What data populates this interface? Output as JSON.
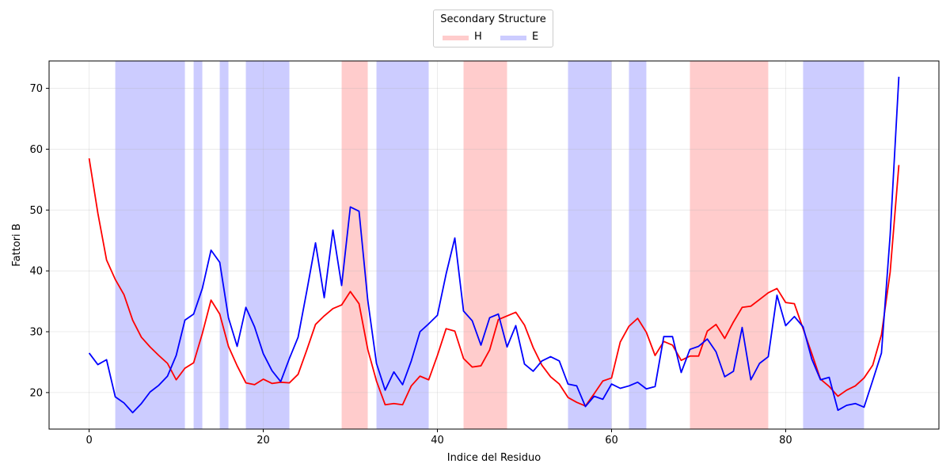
{
  "chart_data": {
    "type": "line",
    "xlabel": "Indice del Residuo",
    "ylabel": "Fattori B",
    "xlim": [
      -4.6,
      97.6
    ],
    "ylim": [
      14,
      74.5
    ],
    "xticks": [
      0,
      20,
      40,
      60,
      80
    ],
    "yticks": [
      20,
      30,
      40,
      50,
      60,
      70
    ],
    "grid": true,
    "legend": {
      "title": "Secondary Structure",
      "placement": "top-center outside",
      "entries": [
        {
          "label": "H",
          "color": "#ff0000"
        },
        {
          "label": "E",
          "color": "#0000ff"
        }
      ]
    },
    "shaded_regions": [
      {
        "type": "E",
        "start": 3,
        "end": 11
      },
      {
        "type": "E",
        "start": 12,
        "end": 13
      },
      {
        "type": "E",
        "start": 15,
        "end": 16
      },
      {
        "type": "E",
        "start": 18,
        "end": 23
      },
      {
        "type": "H",
        "start": 29,
        "end": 32
      },
      {
        "type": "E",
        "start": 33,
        "end": 39
      },
      {
        "type": "H",
        "start": 43,
        "end": 48
      },
      {
        "type": "E",
        "start": 55,
        "end": 60
      },
      {
        "type": "E",
        "start": 62,
        "end": 64
      },
      {
        "type": "H",
        "start": 69,
        "end": 78
      },
      {
        "type": "E",
        "start": 82,
        "end": 89
      }
    ],
    "series": [
      {
        "color": "#ff0000",
        "values": [
          58.5,
          49.5,
          41.8,
          38.6,
          36.1,
          31.9,
          29.1,
          27.5,
          26.1,
          24.8,
          22.1,
          24.0,
          24.9,
          29.7,
          35.2,
          32.9,
          27.6,
          24.4,
          21.6,
          21.3,
          22.2,
          21.5,
          21.7,
          21.6,
          23.0,
          27.0,
          31.2,
          32.6,
          33.8,
          34.4,
          36.6,
          34.6,
          27.1,
          21.9,
          18.0,
          18.2,
          18.0,
          21.1,
          22.7,
          22.1,
          26.1,
          30.5,
          30.1,
          25.6,
          24.2,
          24.4,
          27.0,
          32.0,
          32.6,
          33.2,
          31.1,
          27.4,
          24.5,
          22.6,
          21.4,
          19.2,
          18.4,
          17.8,
          19.8,
          21.9,
          22.4,
          28.3,
          30.9,
          32.2,
          29.9,
          26.1,
          28.4,
          27.8,
          25.3,
          26.0,
          26.0,
          30.1,
          31.2,
          28.9,
          31.6,
          34.0,
          34.2,
          35.3,
          36.4,
          37.1,
          34.8,
          34.6,
          30.5,
          26.4,
          22.2,
          21.0,
          19.4,
          20.4,
          21.1,
          22.4,
          24.5,
          29.5,
          39.8,
          57.4
        ]
      },
      {
        "color": "#0000ff",
        "values": [
          26.5,
          24.6,
          25.4,
          19.3,
          18.3,
          16.7,
          18.2,
          20.1,
          21.2,
          22.7,
          26.1,
          31.9,
          32.9,
          37.1,
          43.4,
          41.4,
          32.3,
          27.6,
          34.0,
          30.8,
          26.4,
          23.6,
          21.8,
          25.6,
          29.1,
          36.7,
          44.6,
          35.6,
          46.7,
          37.6,
          50.5,
          49.8,
          35.2,
          24.8,
          20.4,
          23.4,
          21.3,
          25.2,
          30.0,
          31.3,
          32.7,
          39.5,
          45.4,
          33.4,
          31.8,
          27.8,
          32.3,
          32.9,
          27.5,
          31.0,
          24.7,
          23.5,
          25.2,
          25.9,
          25.2,
          21.4,
          21.1,
          17.7,
          19.4,
          18.9,
          21.4,
          20.7,
          21.1,
          21.7,
          20.6,
          21.0,
          29.2,
          29.2,
          23.3,
          27.1,
          27.6,
          28.8,
          26.7,
          22.6,
          23.5,
          30.7,
          22.1,
          24.8,
          25.9,
          36.0,
          31.0,
          32.5,
          30.8,
          25.5,
          22.1,
          22.5,
          17.1,
          17.9,
          18.2,
          17.6,
          22.0,
          26.5,
          45.9,
          71.9
        ]
      }
    ]
  }
}
